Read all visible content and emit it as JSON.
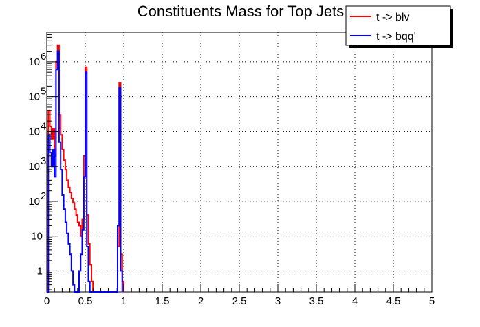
{
  "chart_data": {
    "type": "line",
    "title": "Constituents Mass for Top Jets",
    "xlabel": "",
    "ylabel": "",
    "xlim": [
      0,
      5
    ],
    "ylim": [
      0.25,
      7000000
    ],
    "yscale": "log",
    "grid": true,
    "legend_placement": "top-right",
    "x_ticks": [
      {
        "value": 0,
        "label": "0"
      },
      {
        "value": 0.5,
        "label": "0.5"
      },
      {
        "value": 1,
        "label": "1"
      },
      {
        "value": 1.5,
        "label": "1.5"
      },
      {
        "value": 2,
        "label": "2"
      },
      {
        "value": 2.5,
        "label": "2.5"
      },
      {
        "value": 3,
        "label": "3"
      },
      {
        "value": 3.5,
        "label": "3.5"
      },
      {
        "value": 4,
        "label": "4"
      },
      {
        "value": 4.5,
        "label": "4.5"
      },
      {
        "value": 5,
        "label": "5"
      }
    ],
    "y_ticks": [
      {
        "value": 1,
        "base": "1",
        "exp": ""
      },
      {
        "value": 10,
        "base": "10",
        "exp": ""
      },
      {
        "value": 100,
        "base": "10",
        "exp": "2"
      },
      {
        "value": 1000,
        "base": "10",
        "exp": "3"
      },
      {
        "value": 10000,
        "base": "10",
        "exp": "4"
      },
      {
        "value": 100000,
        "base": "10",
        "exp": "5"
      },
      {
        "value": 1000000,
        "base": "10",
        "exp": "6"
      }
    ],
    "series": [
      {
        "name": "t -> blv",
        "color": "#ff0000",
        "points": [
          [
            0.0,
            0
          ],
          [
            0.02,
            40000
          ],
          [
            0.04,
            14000
          ],
          [
            0.06,
            6000
          ],
          [
            0.08,
            12000
          ],
          [
            0.1,
            2000
          ],
          [
            0.12,
            1000000
          ],
          [
            0.14,
            3000000
          ],
          [
            0.16,
            30000
          ],
          [
            0.18,
            8000
          ],
          [
            0.2,
            3000
          ],
          [
            0.22,
            1500
          ],
          [
            0.24,
            800
          ],
          [
            0.26,
            400
          ],
          [
            0.28,
            250
          ],
          [
            0.3,
            180
          ],
          [
            0.32,
            120
          ],
          [
            0.34,
            90
          ],
          [
            0.36,
            60
          ],
          [
            0.38,
            40
          ],
          [
            0.4,
            25
          ],
          [
            0.42,
            20
          ],
          [
            0.44,
            10
          ],
          [
            0.46,
            30
          ],
          [
            0.48,
            2000
          ],
          [
            0.5,
            700000
          ],
          [
            0.52,
            40
          ],
          [
            0.54,
            6
          ],
          [
            0.56,
            1.5
          ],
          [
            0.58,
            0.5
          ],
          [
            0.6,
            0
          ],
          [
            0.9,
            0
          ],
          [
            0.92,
            5
          ],
          [
            0.94,
            250000
          ],
          [
            0.96,
            3
          ],
          [
            0.98,
            0.5
          ],
          [
            1.0,
            0
          ]
        ]
      },
      {
        "name": "t -> bqq'",
        "color": "#0000ff",
        "points": [
          [
            0.0,
            0
          ],
          [
            0.02,
            8000
          ],
          [
            0.04,
            2500
          ],
          [
            0.06,
            1000
          ],
          [
            0.08,
            3000
          ],
          [
            0.1,
            500
          ],
          [
            0.12,
            600000
          ],
          [
            0.14,
            2000000
          ],
          [
            0.16,
            5000
          ],
          [
            0.18,
            800
          ],
          [
            0.2,
            150
          ],
          [
            0.22,
            60
          ],
          [
            0.24,
            25
          ],
          [
            0.26,
            12
          ],
          [
            0.28,
            6
          ],
          [
            0.3,
            3
          ],
          [
            0.32,
            1
          ],
          [
            0.34,
            0.4
          ],
          [
            0.36,
            0
          ],
          [
            0.4,
            0
          ],
          [
            0.42,
            1
          ],
          [
            0.44,
            3
          ],
          [
            0.46,
            15
          ],
          [
            0.48,
            500
          ],
          [
            0.5,
            500000
          ],
          [
            0.52,
            5
          ],
          [
            0.54,
            0.5
          ],
          [
            0.56,
            0
          ],
          [
            0.9,
            0
          ],
          [
            0.92,
            20
          ],
          [
            0.94,
            180000
          ],
          [
            0.96,
            1
          ],
          [
            0.98,
            0
          ]
        ]
      }
    ]
  }
}
